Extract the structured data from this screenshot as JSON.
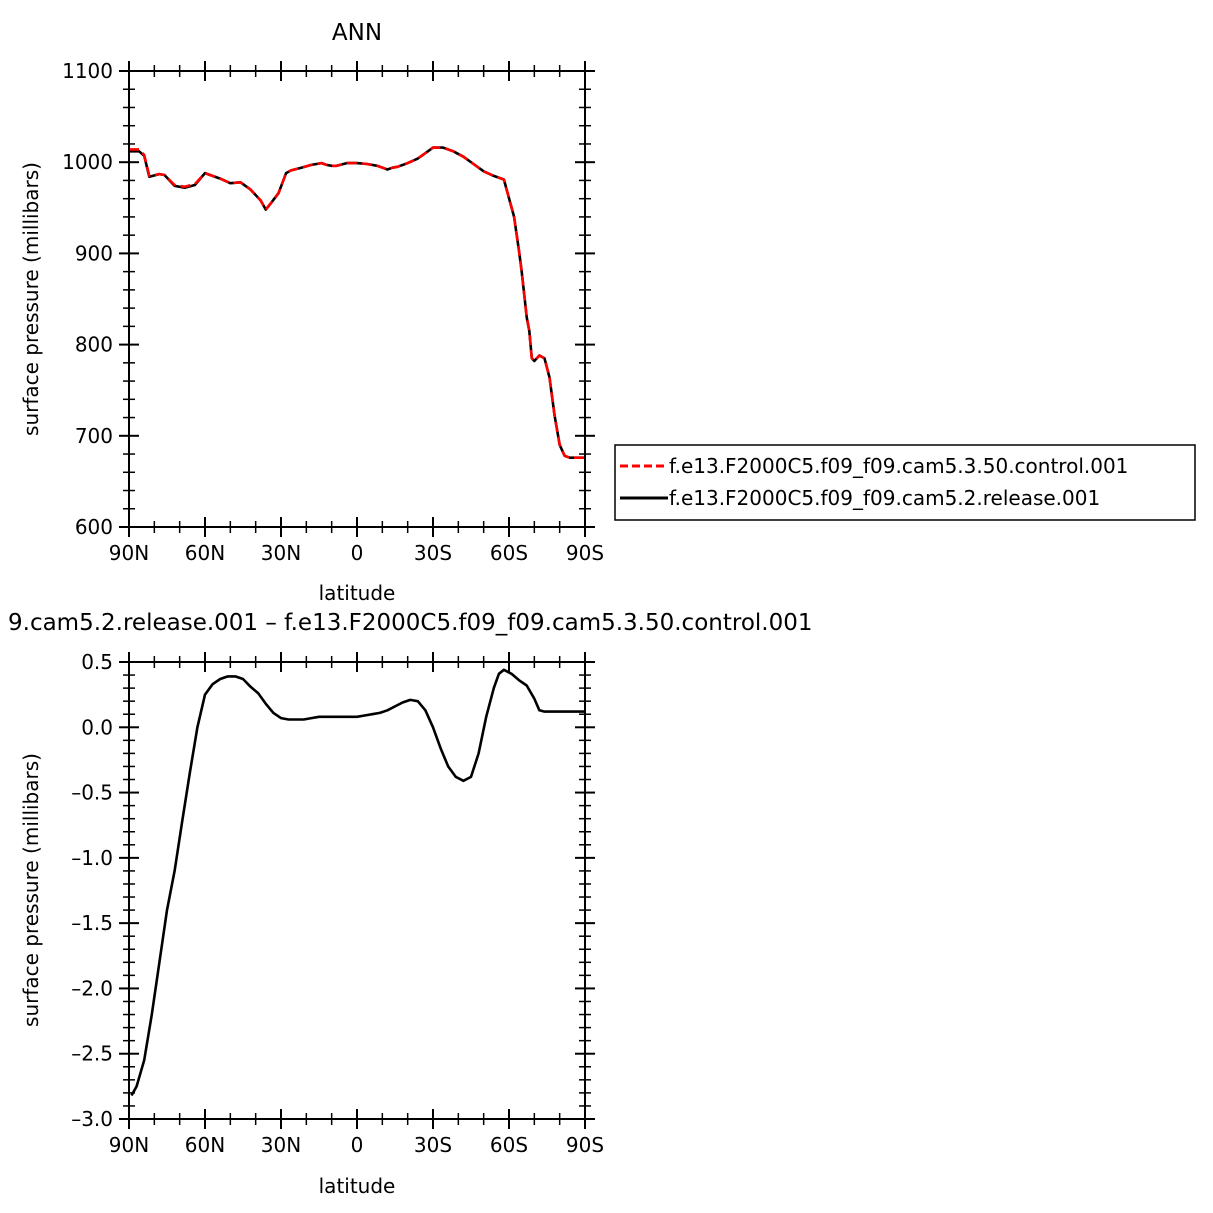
{
  "chart_data": [
    {
      "type": "line",
      "title": "ANN",
      "xlabel": "latitude",
      "ylabel": "surface pressure (millibars)",
      "xlim": [
        90,
        -90
      ],
      "ylim": [
        600,
        1100
      ],
      "xticks": [
        90,
        60,
        30,
        0,
        -30,
        -60,
        -90
      ],
      "xtick_labels": [
        "90N",
        "60N",
        "30N",
        "0",
        "30S",
        "60S",
        "90S"
      ],
      "yticks": [
        600,
        700,
        800,
        900,
        1000,
        1100
      ],
      "ytick_labels": [
        "600",
        "700",
        "800",
        "900",
        "1000",
        "1100"
      ],
      "grid": false,
      "legend_position": "right",
      "series": [
        {
          "name": "f.e13.F2000C5.f09_f09.cam5.3.50.control.001",
          "color": "#ff0000",
          "style": "dashed",
          "x": [
            90,
            86,
            84,
            82,
            78,
            76,
            72,
            68,
            64,
            60,
            58,
            54,
            50,
            46,
            42,
            38,
            36,
            34,
            31,
            28,
            26,
            22,
            18,
            14,
            12,
            10,
            8,
            4,
            0,
            -4,
            -8,
            -12,
            -14,
            -16,
            -20,
            -24,
            -28,
            -30,
            -32,
            -34,
            -38,
            -42,
            -46,
            -50,
            -54,
            -58,
            -62,
            -64,
            -65,
            -66,
            -67,
            -68,
            -69,
            -70,
            -72,
            -74,
            -76,
            -78,
            -80,
            -82,
            -84,
            -86,
            -88,
            -89,
            -90
          ],
          "y": [
            1014,
            1014,
            1008,
            985,
            987,
            986,
            975,
            973,
            976,
            988,
            986,
            982,
            977,
            978,
            970,
            958,
            948,
            955,
            966,
            988,
            991,
            994,
            997,
            999,
            997,
            996,
            996,
            999,
            999,
            998,
            996,
            992,
            994,
            995,
            999,
            1004,
            1012,
            1016,
            1016,
            1016,
            1012,
            1006,
            998,
            990,
            985,
            981,
            940,
            902,
            880,
            855,
            830,
            815,
            785,
            782,
            788,
            785,
            764,
            722,
            690,
            678,
            676,
            676,
            676,
            676,
            676
          ]
        },
        {
          "name": "f.e13.F2000C5.f09_f09.cam5.2.release.001",
          "color": "#000000",
          "style": "solid",
          "x": [
            90,
            86,
            84,
            82,
            78,
            76,
            72,
            68,
            64,
            60,
            58,
            54,
            50,
            46,
            42,
            38,
            36,
            34,
            31,
            28,
            26,
            22,
            18,
            14,
            12,
            10,
            8,
            4,
            0,
            -4,
            -8,
            -12,
            -14,
            -16,
            -20,
            -24,
            -28,
            -30,
            -32,
            -34,
            -38,
            -42,
            -46,
            -50,
            -54,
            -58,
            -62,
            -64,
            -65,
            -66,
            -67,
            -68,
            -69,
            -70,
            -72,
            -74,
            -76,
            -78,
            -80,
            -82,
            -84,
            -86,
            -88,
            -89,
            -90
          ],
          "y": [
            1012,
            1012,
            1007,
            984,
            987,
            986,
            974,
            972,
            975,
            988,
            986,
            982,
            977,
            978,
            970,
            958,
            948,
            955,
            966,
            988,
            991,
            994,
            997,
            999,
            997,
            996,
            996,
            999,
            999,
            998,
            996,
            992,
            994,
            995,
            999,
            1004,
            1012,
            1016,
            1016,
            1016,
            1012,
            1006,
            998,
            990,
            985,
            981,
            940,
            902,
            880,
            855,
            830,
            815,
            785,
            782,
            788,
            785,
            764,
            722,
            690,
            678,
            676,
            676,
            676,
            676,
            676
          ]
        }
      ]
    },
    {
      "type": "line",
      "title": "9.cam5.2.release.001 – f.e13.F2000C5.f09_f09.cam5.3.50.control.001",
      "xlabel": "latitude",
      "ylabel": "surface pressure (millibars)",
      "xlim": [
        90,
        -90
      ],
      "ylim": [
        -3.0,
        0.5
      ],
      "xticks": [
        90,
        60,
        30,
        0,
        -30,
        -60,
        -90
      ],
      "xtick_labels": [
        "90N",
        "60N",
        "30N",
        "0",
        "30S",
        "60S",
        "90S"
      ],
      "yticks": [
        0.5,
        0.0,
        -0.5,
        -1.0,
        -1.5,
        -2.0,
        -2.5,
        -3.0
      ],
      "ytick_labels": [
        "0.5",
        "0.0",
        "–0.5",
        "–1.0",
        "–1.5",
        "–2.0",
        "–2.5",
        "–3.0"
      ],
      "grid": false,
      "series": [
        {
          "color": "#000000",
          "style": "solid",
          "x": [
            89,
            87,
            84,
            81,
            78,
            75,
            72,
            69,
            66,
            63,
            60,
            57,
            54,
            51,
            48,
            45,
            42,
            39,
            36,
            33,
            30,
            27,
            24,
            21,
            18,
            15,
            12,
            9,
            6,
            3,
            0,
            -3,
            -6,
            -9,
            -12,
            -15,
            -18,
            -21,
            -24,
            -27,
            -30,
            -33,
            -36,
            -39,
            -42,
            -45,
            -48,
            -51,
            -54,
            -56,
            -58,
            -61,
            -64,
            -67,
            -70,
            -72,
            -74,
            -76,
            -78,
            -80,
            -82,
            -84,
            -86,
            -88,
            -90
          ],
          "y": [
            -2.82,
            -2.75,
            -2.55,
            -2.2,
            -1.8,
            -1.4,
            -1.1,
            -0.72,
            -0.35,
            0.0,
            0.25,
            0.33,
            0.37,
            0.39,
            0.39,
            0.37,
            0.31,
            0.26,
            0.18,
            0.11,
            0.07,
            0.06,
            0.06,
            0.06,
            0.07,
            0.08,
            0.08,
            0.08,
            0.08,
            0.08,
            0.08,
            0.09,
            0.1,
            0.11,
            0.13,
            0.16,
            0.19,
            0.21,
            0.2,
            0.13,
            0.0,
            -0.16,
            -0.3,
            -0.38,
            -0.41,
            -0.38,
            -0.2,
            0.08,
            0.3,
            0.41,
            0.44,
            0.41,
            0.36,
            0.32,
            0.22,
            0.13,
            0.12,
            0.12,
            0.12,
            0.12,
            0.12,
            0.12,
            0.12,
            0.12,
            0.12
          ]
        }
      ]
    }
  ]
}
